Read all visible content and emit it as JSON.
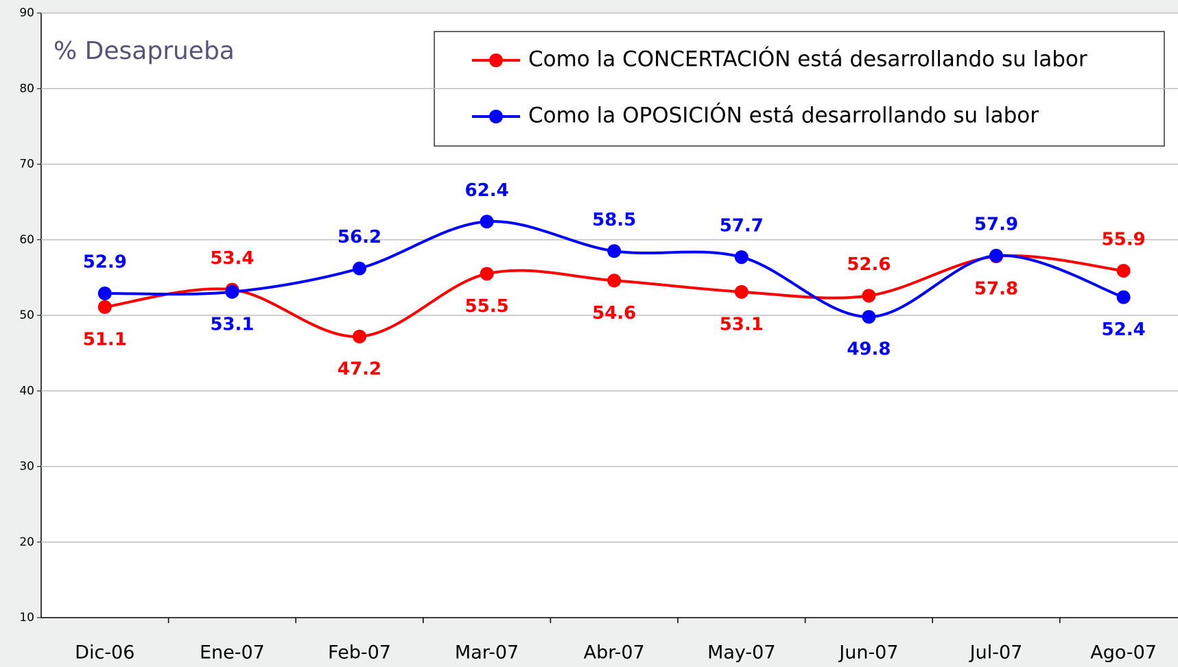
{
  "chart_data": {
    "type": "line",
    "title": "% Desaprueba",
    "categories": [
      "Dic-06",
      "Ene-07",
      "Feb-07",
      "Mar-07",
      "Abr-07",
      "May-07",
      "Jun-07",
      "Jul-07",
      "Ago-07"
    ],
    "series": [
      {
        "name": "Como la CONCERTACIÓN está desarrollando su labor",
        "color": "#ff0000",
        "values": [
          51.1,
          53.4,
          47.2,
          55.5,
          54.6,
          53.1,
          52.6,
          57.8,
          55.9
        ]
      },
      {
        "name": "Como la OPOSICIÓN está desarrollando su labor",
        "color": "#0000ff",
        "values": [
          52.9,
          53.1,
          56.2,
          62.4,
          58.5,
          57.7,
          49.8,
          57.9,
          52.4
        ]
      }
    ],
    "ylim": [
      10,
      90
    ],
    "yticks": [
      10,
      20,
      30,
      40,
      50,
      60,
      70,
      80,
      90
    ],
    "grid": true,
    "legend": "top-right",
    "smooth": true
  }
}
